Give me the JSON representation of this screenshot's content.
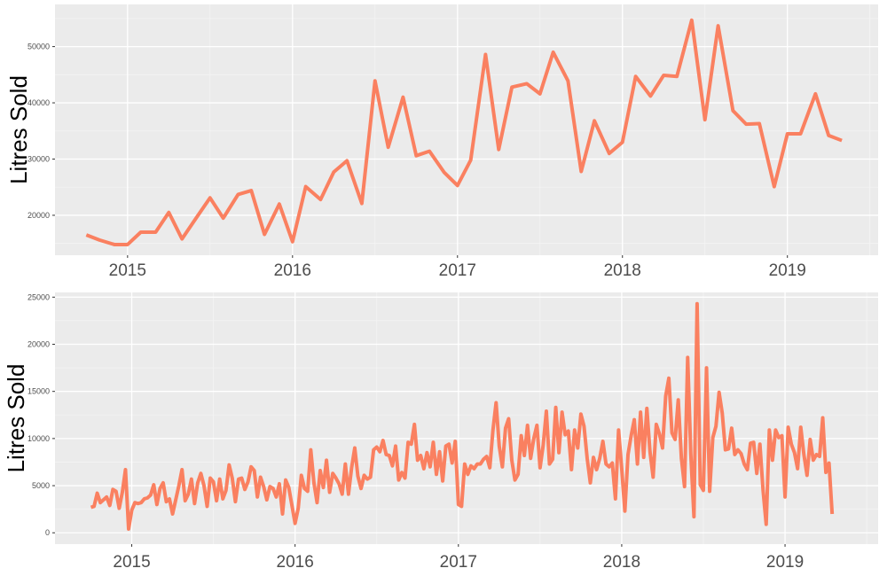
{
  "colors": {
    "line": "#FA8060",
    "panel_background": "#EBEBEB",
    "grid_major": "#FFFFFF",
    "grid_minor": "#F4F4F4",
    "tick_text": "#4D4D4D"
  },
  "chart_data": [
    {
      "type": "line",
      "title": "",
      "xlabel": "",
      "ylabel": "Litres Sold",
      "xlim": [
        2014.56,
        2019.55
      ],
      "ylim": [
        12900,
        57500
      ],
      "y_ticks": [
        "20000",
        "30000",
        "40000",
        "50000"
      ],
      "x_ticks": [
        "2015",
        "2016",
        "2017",
        "2018",
        "2019"
      ],
      "grid": true,
      "x": [
        2014.75,
        2014.83,
        2014.92,
        2015.0,
        2015.08,
        2015.17,
        2015.25,
        2015.33,
        2015.42,
        2015.5,
        2015.58,
        2015.67,
        2015.75,
        2015.83,
        2015.92,
        2016.0,
        2016.08,
        2016.17,
        2016.25,
        2016.33,
        2016.42,
        2016.5,
        2016.58,
        2016.67,
        2016.75,
        2016.83,
        2016.92,
        2017.0,
        2017.08,
        2017.17,
        2017.25,
        2017.33,
        2017.42,
        2017.5,
        2017.58,
        2017.67,
        2017.75,
        2017.83,
        2017.92,
        2018.0,
        2018.08,
        2018.17,
        2018.25,
        2018.33,
        2018.42,
        2018.5,
        2018.58,
        2018.67,
        2018.75,
        2018.83,
        2018.92,
        2019.0,
        2019.08,
        2019.17,
        2019.25,
        2019.33
      ],
      "series": [
        {
          "values": [
            16500,
            15600,
            14800,
            14800,
            17000,
            17000,
            20500,
            15800,
            19700,
            23100,
            19500,
            23700,
            24400,
            16600,
            22000,
            15300,
            25100,
            22800,
            27700,
            29700,
            22100,
            43900,
            32100,
            41000,
            30600,
            31400,
            27600,
            25300,
            29800,
            48600,
            31700,
            42800,
            43400,
            41600,
            49000,
            43900,
            27800,
            36800,
            31000,
            33000,
            44700,
            41200,
            44900,
            44700,
            54700,
            37000,
            53700,
            38600,
            36200,
            36300,
            25100,
            34500,
            34500,
            41600,
            34200,
            33300
          ]
        }
      ]
    },
    {
      "type": "line",
      "title": "",
      "xlabel": "",
      "ylabel": "Litres Sold",
      "xlim": [
        2014.53,
        2019.57
      ],
      "ylim": [
        -1200,
        25500
      ],
      "y_ticks": [
        "0",
        "5000",
        "10000",
        "15000",
        "20000",
        "25000"
      ],
      "x_ticks": [
        "2015",
        "2016",
        "2017",
        "2018",
        "2019"
      ],
      "grid": true,
      "x_start": 2014.75,
      "x_step": 0.019231,
      "series": [
        {
          "values": [
            2700,
            2800,
            4200,
            3200,
            3500,
            3800,
            2900,
            4600,
            4400,
            2600,
            4300,
            6700,
            400,
            2400,
            3200,
            3100,
            3200,
            3600,
            3700,
            4000,
            5100,
            3000,
            4700,
            5300,
            3300,
            3600,
            2000,
            3500,
            5000,
            6700,
            3400,
            4100,
            5700,
            3100,
            5300,
            6300,
            5000,
            2800,
            5800,
            5400,
            3400,
            5700,
            3600,
            4500,
            7200,
            5800,
            3300,
            5700,
            5800,
            4600,
            5400,
            7000,
            6600,
            3800,
            5900,
            4900,
            3500,
            4900,
            4700,
            3800,
            5200,
            2000,
            5600,
            4800,
            2900,
            1000,
            2600,
            6100,
            4700,
            4400,
            8800,
            5300,
            3200,
            6600,
            4800,
            7700,
            4300,
            6300,
            5800,
            5200,
            4100,
            7300,
            4100,
            6900,
            9000,
            6000,
            4700,
            6100,
            5700,
            5900,
            8800,
            9100,
            8600,
            9800,
            8300,
            8200,
            7100,
            9200,
            5600,
            6400,
            5800,
            9600,
            9400,
            11500,
            7700,
            8200,
            6800,
            8500,
            7000,
            9600,
            6200,
            8600,
            5500,
            9200,
            9400,
            7400,
            9700,
            3000,
            2800,
            7300,
            6200,
            7100,
            6800,
            7300,
            7300,
            7800,
            8100,
            6900,
            10900,
            13800,
            9200,
            7000,
            11100,
            12100,
            7700,
            5600,
            6200,
            10300,
            8200,
            11400,
            7900,
            10000,
            11400,
            6900,
            9300,
            12900,
            7300,
            7800,
            13300,
            8500,
            12800,
            10400,
            10800,
            6700,
            10900,
            9000,
            12600,
            11300,
            7900,
            5300,
            8000,
            6700,
            7900,
            9700,
            7300,
            7000,
            7400,
            3600,
            10900,
            6800,
            2300,
            8300,
            10300,
            12000,
            7300,
            12800,
            8000,
            13200,
            8600,
            5900,
            11500,
            10500,
            9000,
            14500,
            16400,
            10600,
            9900,
            14100,
            7900,
            4900,
            18600,
            8300,
            1700,
            24300,
            5100,
            4500,
            17500,
            4400,
            10100,
            11300,
            14900,
            12700,
            8800,
            8900,
            11100,
            8300,
            8800,
            8400,
            7300,
            6700,
            9500,
            9600,
            6300,
            9400,
            4500,
            900,
            10900,
            7700,
            10900,
            10100,
            10300,
            3800,
            11200,
            9400,
            8500,
            6800,
            11200,
            8300,
            6100,
            9900,
            7700,
            8300,
            8100,
            12200,
            6400,
            7400,
            2000
          ]
        }
      ]
    }
  ]
}
